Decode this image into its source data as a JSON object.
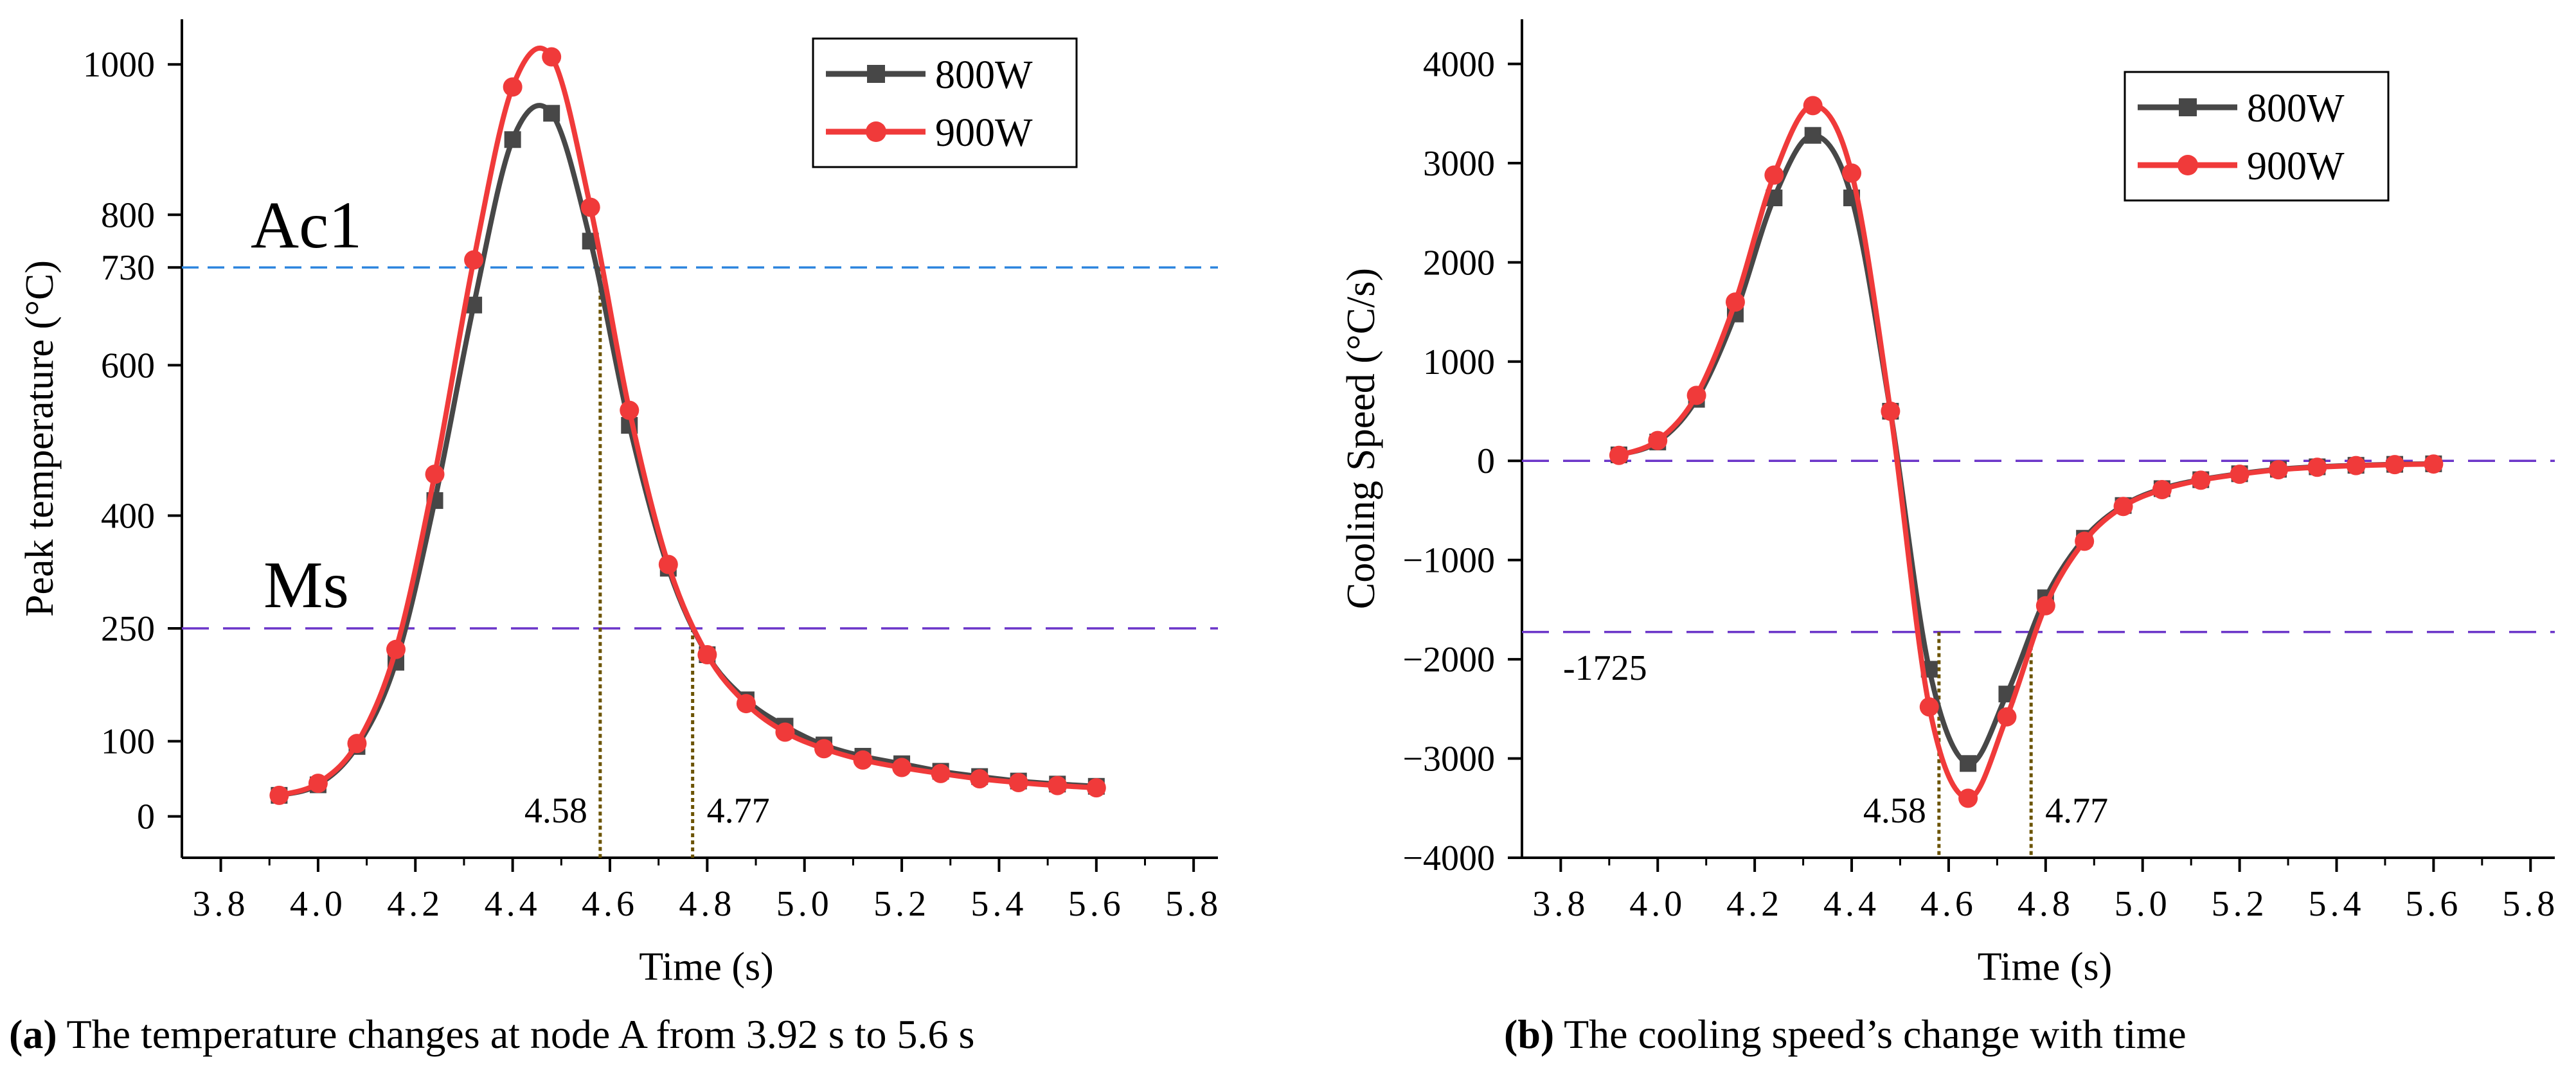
{
  "colors": {
    "series_800": "#474747",
    "series_900": "#f03a3a",
    "hline_ac1": "#2e86de",
    "hline_purple": "#6b35c9",
    "vline": "#6b5300",
    "axis": "#000000"
  },
  "chart_data": [
    {
      "id": "a",
      "type": "line",
      "xlabel": "Time (s)",
      "ylabel": "Peak temperature (°C)",
      "xlim": [
        3.72,
        5.85
      ],
      "ylim": [
        -55,
        1060
      ],
      "x_ticks": [
        "3.8",
        "4.0",
        "4.2",
        "4.4",
        "4.6",
        "4.8",
        "5.0",
        "5.2",
        "5.4",
        "5.6",
        "5.8"
      ],
      "x_tick_values": [
        3.8,
        4.0,
        4.2,
        4.4,
        4.6,
        4.8,
        5.0,
        5.2,
        5.4,
        5.6,
        5.8
      ],
      "y_ticks": [
        "0",
        "100",
        "250",
        "400",
        "600",
        "730",
        "800",
        "1000"
      ],
      "y_tick_values": [
        0,
        100,
        250,
        400,
        600,
        730,
        800,
        1000
      ],
      "legend": {
        "position": "top-right",
        "entries": [
          "800W",
          "900W"
        ]
      },
      "x": [
        3.92,
        4.0,
        4.08,
        4.16,
        4.24,
        4.32,
        4.4,
        4.48,
        4.56,
        4.64,
        4.72,
        4.8,
        4.88,
        4.96,
        5.04,
        5.12,
        5.2,
        5.28,
        5.36,
        5.44,
        5.52,
        5.6
      ],
      "series": [
        {
          "name": "800W",
          "values": [
            28,
            42,
            93,
            205,
            420,
            680,
            900,
            935,
            765,
            520,
            330,
            215,
            155,
            120,
            95,
            80,
            70,
            60,
            53,
            47,
            43,
            40
          ]
        },
        {
          "name": "900W",
          "values": [
            28,
            44,
            97,
            222,
            455,
            740,
            970,
            1010,
            810,
            540,
            335,
            215,
            150,
            112,
            90,
            75,
            65,
            57,
            50,
            45,
            41,
            38
          ]
        }
      ],
      "hlines": [
        {
          "value": 730,
          "label": "Ac1",
          "color": "#2e86de",
          "dash": "short"
        },
        {
          "value": 250,
          "label": "Ms",
          "color": "#6b35c9",
          "dash": "long"
        }
      ],
      "vlines": [
        {
          "x": 4.58,
          "label": "4.58",
          "top_value": 730
        },
        {
          "x": 4.77,
          "label": "4.77",
          "top_value": 250
        }
      ],
      "caption_prefix": "(a)",
      "caption_text": " The temperature changes at node A from 3.92 s to 5.6 s"
    },
    {
      "id": "b",
      "type": "line",
      "xlabel": "Time (s)",
      "ylabel": "Cooling Speed (°C/s)",
      "xlim": [
        3.72,
        5.85
      ],
      "ylim": [
        -4000,
        4450
      ],
      "x_ticks": [
        "3.8",
        "4.0",
        "4.2",
        "4.4",
        "4.6",
        "4.8",
        "5.0",
        "5.2",
        "5.4",
        "5.6",
        "5.8"
      ],
      "x_tick_values": [
        3.8,
        4.0,
        4.2,
        4.4,
        4.6,
        4.8,
        5.0,
        5.2,
        5.4,
        5.6,
        5.8
      ],
      "y_ticks": [
        "−4000",
        "−3000",
        "−2000",
        "−1000",
        "0",
        "1000",
        "2000",
        "3000",
        "4000"
      ],
      "y_tick_values": [
        -4000,
        -3000,
        -2000,
        -1000,
        0,
        1000,
        2000,
        3000,
        4000
      ],
      "legend": {
        "position": "top-right",
        "entries": [
          "800W",
          "900W"
        ]
      },
      "x": [
        3.92,
        4.0,
        4.08,
        4.16,
        4.24,
        4.32,
        4.4,
        4.48,
        4.56,
        4.64,
        4.72,
        4.8,
        4.88,
        4.96,
        5.04,
        5.12,
        5.2,
        5.28,
        5.36,
        5.44,
        5.52,
        5.6
      ],
      "series": [
        {
          "name": "800W",
          "values": [
            60,
            190,
            620,
            1480,
            2650,
            3280,
            2650,
            500,
            -2100,
            -3050,
            -2350,
            -1380,
            -780,
            -450,
            -280,
            -190,
            -130,
            -85,
            -60,
            -45,
            -35,
            -30
          ]
        },
        {
          "name": "900W",
          "values": [
            55,
            205,
            660,
            1600,
            2880,
            3580,
            2900,
            500,
            -2480,
            -3400,
            -2580,
            -1460,
            -810,
            -460,
            -290,
            -195,
            -135,
            -90,
            -65,
            -48,
            -38,
            -32
          ]
        }
      ],
      "hlines": [
        {
          "value": 0,
          "label": "",
          "color": "#6b35c9",
          "dash": "long"
        },
        {
          "value": -1725,
          "label": "-1725",
          "color": "#6b35c9",
          "dash": "long"
        }
      ],
      "vlines": [
        {
          "x": 4.58,
          "label": "4.58",
          "top_value": -1725
        },
        {
          "x": 4.77,
          "label": "4.77",
          "top_value": -1725
        }
      ],
      "caption_prefix": "(b)",
      "caption_text": " The cooling speed’s change with time"
    }
  ]
}
